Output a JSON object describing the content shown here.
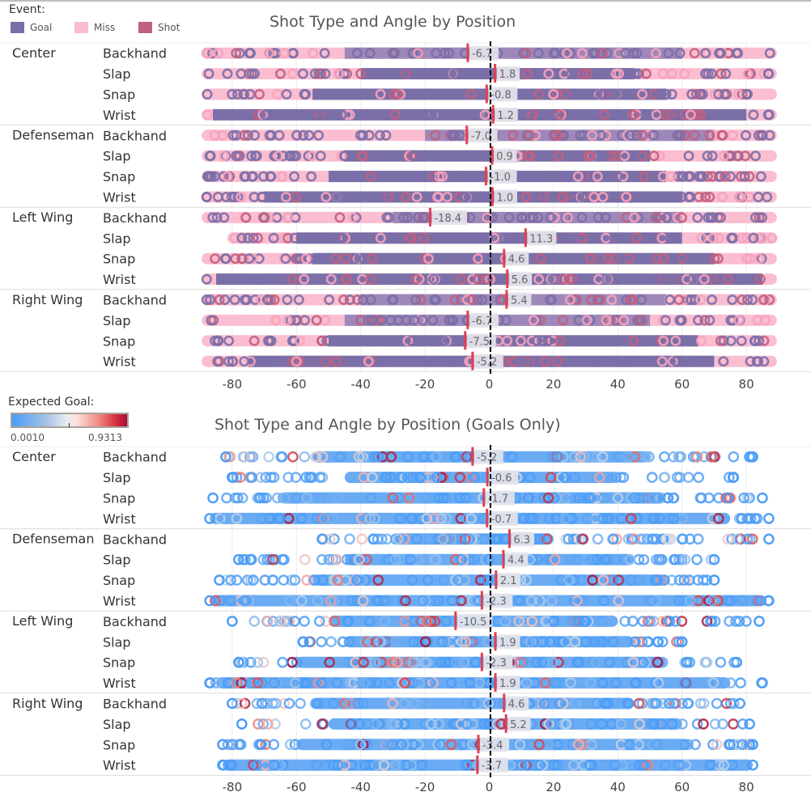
{
  "legend_event": {
    "title": "Event:",
    "items": [
      {
        "label": "Goal",
        "color": "#7b6fa8"
      },
      {
        "label": "Miss",
        "color": "#fbbdd0"
      },
      {
        "label": "Shot",
        "color": "#c1607f"
      }
    ]
  },
  "legend_xg": {
    "title": "Expected Goal:",
    "min_label": "0.0010",
    "max_label": "0.9313",
    "colors": [
      "#4a9cf7",
      "#e8ecef",
      "#a50f34"
    ]
  },
  "chart_data": [
    {
      "type": "scatter",
      "title": "Shot Type and Angle by Position",
      "xlabel": "",
      "ylabel": "",
      "xlim": [
        -90,
        90
      ],
      "xticks": [
        -80,
        -60,
        -40,
        -20,
        0,
        20,
        40,
        60,
        80
      ],
      "reference_line": {
        "value": 0,
        "style": "dashed",
        "color": "#000000"
      },
      "color_by": "Event",
      "groups": [
        {
          "position": "Center",
          "rows": [
            {
              "shot_type": "Backhand",
              "mean_angle": -6.7,
              "label": "-6.7",
              "range": [
                -88,
                88
              ],
              "dense_range": [
                -45,
                60
              ],
              "dominant": "Miss"
            },
            {
              "shot_type": "Slap",
              "mean_angle": 1.8,
              "label": "1.8",
              "range": [
                -88,
                88
              ],
              "dense_range": [
                -40,
                45
              ],
              "dominant": "Goal"
            },
            {
              "shot_type": "Snap",
              "mean_angle": -0.8,
              "label": "-0.8",
              "range": [
                -88,
                88
              ],
              "dense_range": [
                -55,
                55
              ],
              "dominant": "Goal"
            },
            {
              "shot_type": "Wrist",
              "mean_angle": 1.2,
              "label": "1.2",
              "range": [
                -88,
                88
              ],
              "dense_range": [
                -86,
                80
              ],
              "dominant": "Goal"
            }
          ]
        },
        {
          "position": "Defenseman",
          "rows": [
            {
              "shot_type": "Backhand",
              "mean_angle": -7.0,
              "label": "-7.0",
              "range": [
                -88,
                88
              ],
              "dense_range": [
                -20,
                70
              ],
              "dominant": "Miss"
            },
            {
              "shot_type": "Slap",
              "mean_angle": 0.9,
              "label": "0.9",
              "range": [
                -88,
                88
              ],
              "dense_range": [
                -45,
                50
              ],
              "dominant": "Goal"
            },
            {
              "shot_type": "Snap",
              "mean_angle": -1.0,
              "label": "-1.0",
              "range": [
                -88,
                88
              ],
              "dense_range": [
                -50,
                55
              ],
              "dominant": "Goal"
            },
            {
              "shot_type": "Wrist",
              "mean_angle": 1.0,
              "label": "1.0",
              "range": [
                -88,
                88
              ],
              "dense_range": [
                -70,
                60
              ],
              "dominant": "Goal"
            }
          ]
        },
        {
          "position": "Left Wing",
          "rows": [
            {
              "shot_type": "Backhand",
              "mean_angle": -18.4,
              "label": "-18.4",
              "range": [
                -88,
                88
              ],
              "dense_range": [
                -30,
                60
              ],
              "dominant": "Miss"
            },
            {
              "shot_type": "Slap",
              "mean_angle": 11.3,
              "label": "11.3",
              "range": [
                -80,
                88
              ],
              "dense_range": [
                -60,
                60
              ],
              "dominant": "Goal"
            },
            {
              "shot_type": "Snap",
              "mean_angle": 4.6,
              "label": "4.6",
              "range": [
                -88,
                88
              ],
              "dense_range": [
                -55,
                70
              ],
              "dominant": "Goal"
            },
            {
              "shot_type": "Wrist",
              "mean_angle": 5.6,
              "label": "5.6",
              "range": [
                -88,
                88
              ],
              "dense_range": [
                -85,
                85
              ],
              "dominant": "Goal"
            }
          ]
        },
        {
          "position": "Right Wing",
          "rows": [
            {
              "shot_type": "Backhand",
              "mean_angle": 5.4,
              "label": "5.4",
              "range": [
                -88,
                88
              ],
              "dense_range": [
                -40,
                55
              ],
              "dominant": "Miss"
            },
            {
              "shot_type": "Slap",
              "mean_angle": -6.7,
              "label": "-6.7",
              "range": [
                -88,
                88
              ],
              "dense_range": [
                -45,
                50
              ],
              "dominant": "Miss"
            },
            {
              "shot_type": "Snap",
              "mean_angle": -7.5,
              "label": "-7.5",
              "range": [
                -88,
                88
              ],
              "dense_range": [
                -50,
                65
              ],
              "dominant": "Goal"
            },
            {
              "shot_type": "Wrist",
              "mean_angle": -5.2,
              "label": "-5.2",
              "range": [
                -88,
                88
              ],
              "dense_range": [
                -75,
                70
              ],
              "dominant": "Goal"
            }
          ]
        }
      ]
    },
    {
      "type": "scatter",
      "title": "Shot Type and Angle by Position (Goals Only)",
      "xlabel": "",
      "ylabel": "",
      "xlim": [
        -90,
        90
      ],
      "xticks": [
        -80,
        -60,
        -40,
        -20,
        0,
        20,
        40,
        60,
        80
      ],
      "reference_line": {
        "value": 0,
        "style": "dashed",
        "color": "#000000"
      },
      "color_by": "Expected Goal",
      "color_range": [
        0.001,
        0.9313
      ],
      "groups": [
        {
          "position": "Center",
          "rows": [
            {
              "shot_type": "Backhand",
              "mean_angle": -5.2,
              "label": "-5.2",
              "range": [
                -82,
                82
              ],
              "dense_range": [
                -55,
                50
              ]
            },
            {
              "shot_type": "Slap",
              "mean_angle": -0.6,
              "label": "-0.6",
              "range": [
                -80,
                76
              ],
              "dense_range": [
                -45,
                40
              ]
            },
            {
              "shot_type": "Snap",
              "mean_angle": -1.7,
              "label": "-1.7",
              "range": [
                -86,
                85
              ],
              "dense_range": [
                -65,
                55
              ]
            },
            {
              "shot_type": "Wrist",
              "mean_angle": -0.7,
              "label": "-0.7",
              "range": [
                -87,
                87
              ],
              "dense_range": [
                -87,
                75
              ]
            }
          ]
        },
        {
          "position": "Defenseman",
          "rows": [
            {
              "shot_type": "Backhand",
              "mean_angle": 6.3,
              "label": "6.3",
              "range": [
                -52,
                87
              ],
              "dense_range": [
                -30,
                20
              ]
            },
            {
              "shot_type": "Slap",
              "mean_angle": 4.4,
              "label": "4.4",
              "range": [
                -78,
                70
              ],
              "dense_range": [
                -45,
                45
              ]
            },
            {
              "shot_type": "Snap",
              "mean_angle": 2.1,
              "label": "2.1",
              "range": [
                -84,
                70
              ],
              "dense_range": [
                -55,
                55
              ]
            },
            {
              "shot_type": "Wrist",
              "mean_angle": -2.3,
              "label": "-2.3",
              "range": [
                -87,
                87
              ],
              "dense_range": [
                -87,
                85
              ]
            }
          ]
        },
        {
          "position": "Left Wing",
          "rows": [
            {
              "shot_type": "Backhand",
              "mean_angle": -10.5,
              "label": "-10.5",
              "range": [
                -80,
                84
              ],
              "dense_range": [
                -50,
                40
              ]
            },
            {
              "shot_type": "Slap",
              "mean_angle": 1.9,
              "label": "1.9",
              "range": [
                -58,
                60
              ],
              "dense_range": [
                -45,
                45
              ]
            },
            {
              "shot_type": "Snap",
              "mean_angle": -2.3,
              "label": "-2.3",
              "range": [
                -78,
                77
              ],
              "dense_range": [
                -60,
                55
              ]
            },
            {
              "shot_type": "Wrist",
              "mean_angle": 1.9,
              "label": "1.9",
              "range": [
                -87,
                85
              ],
              "dense_range": [
                -85,
                75
              ]
            }
          ]
        },
        {
          "position": "Right Wing",
          "rows": [
            {
              "shot_type": "Backhand",
              "mean_angle": 4.6,
              "label": "4.6",
              "range": [
                -80,
                78
              ],
              "dense_range": [
                -55,
                45
              ]
            },
            {
              "shot_type": "Slap",
              "mean_angle": 5.2,
              "label": "5.2",
              "range": [
                -77,
                81
              ],
              "dense_range": [
                -50,
                60
              ]
            },
            {
              "shot_type": "Snap",
              "mean_angle": -3.4,
              "label": "-3.4",
              "range": [
                -83,
                82
              ],
              "dense_range": [
                -60,
                62
              ]
            },
            {
              "shot_type": "Wrist",
              "mean_angle": -3.7,
              "label": "-3.7",
              "range": [
                -83,
                82
              ],
              "dense_range": [
                -83,
                82
              ]
            }
          ]
        }
      ]
    }
  ]
}
